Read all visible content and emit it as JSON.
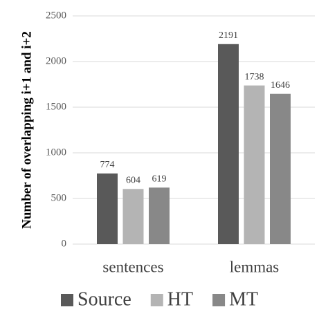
{
  "chart_data": {
    "type": "bar",
    "y_label": "Number of overlapping i+1 and i+2",
    "categories": [
      "sentences",
      "lemmas"
    ],
    "series": [
      {
        "name": "Source",
        "color": "#595959",
        "values": [
          774,
          2191
        ]
      },
      {
        "name": "HT",
        "color": "#b4b4b4",
        "values": [
          604,
          1738
        ]
      },
      {
        "name": "MT",
        "color": "#888888",
        "values": [
          619,
          1646
        ]
      }
    ],
    "ylim": [
      0,
      2500
    ],
    "yticks": [
      0,
      500,
      1000,
      1500,
      2000,
      2500
    ],
    "grid": true,
    "legend": "bottom"
  }
}
